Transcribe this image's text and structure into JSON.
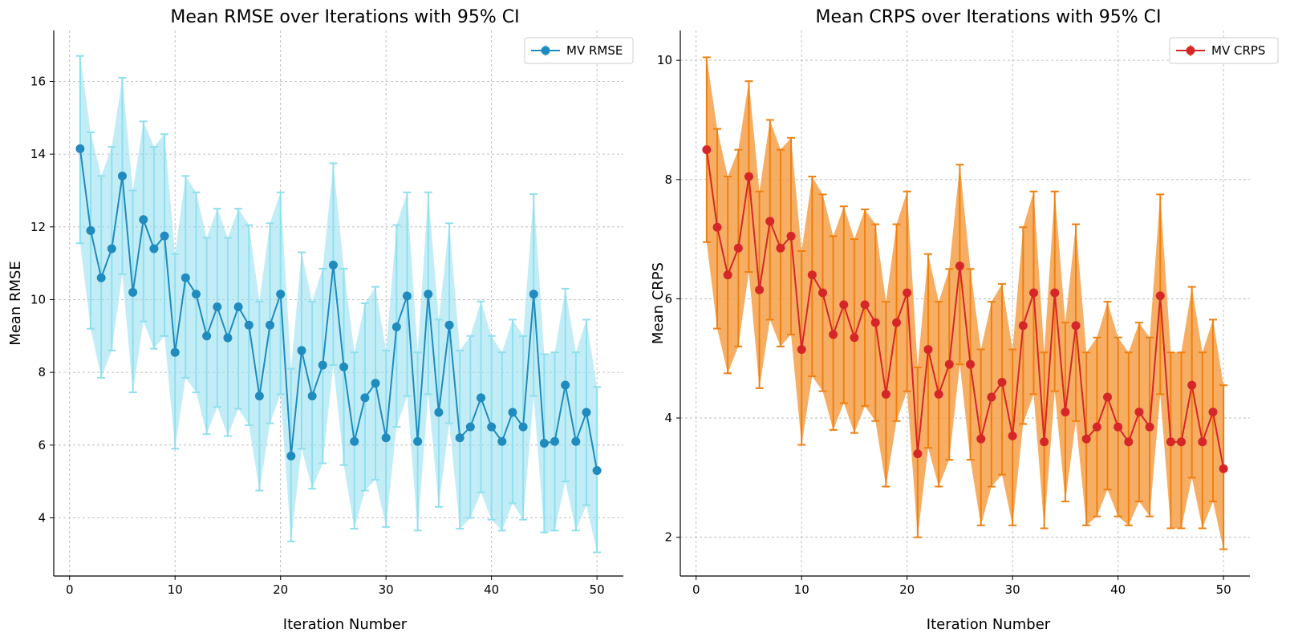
{
  "chart_data": [
    {
      "type": "line",
      "title": "Mean RMSE over Iterations with 95% CI",
      "xlabel": "Iteration Number",
      "ylabel": "Mean RMSE",
      "xlim": [
        -1.5,
        52.5
      ],
      "ylim": [
        2.4,
        17.4
      ],
      "xticks": [
        0,
        10,
        20,
        30,
        40,
        50
      ],
      "yticks": [
        4,
        6,
        8,
        10,
        12,
        14,
        16
      ],
      "grid": true,
      "legend": "top-right",
      "series": [
        {
          "name": "MV RMSE",
          "line_color": "#1f8bbf",
          "ci_color": "#8fdfee",
          "ci_opacity": 0.55,
          "x": [
            1,
            2,
            3,
            4,
            5,
            6,
            7,
            8,
            9,
            10,
            11,
            12,
            13,
            14,
            15,
            16,
            17,
            18,
            19,
            20,
            21,
            22,
            23,
            24,
            25,
            26,
            27,
            28,
            29,
            30,
            31,
            32,
            33,
            34,
            35,
            36,
            37,
            38,
            39,
            40,
            41,
            42,
            43,
            44,
            45,
            46,
            47,
            48,
            49,
            50
          ],
          "y": [
            14.15,
            11.9,
            10.6,
            11.4,
            13.4,
            10.2,
            12.2,
            11.4,
            11.75,
            8.55,
            10.6,
            10.15,
            9.0,
            9.8,
            8.95,
            9.8,
            9.3,
            7.35,
            9.3,
            10.15,
            5.7,
            8.6,
            7.35,
            8.2,
            10.95,
            8.15,
            6.1,
            7.3,
            7.7,
            6.2,
            9.25,
            10.1,
            6.1,
            10.15,
            6.9,
            9.3,
            6.2,
            6.5,
            7.3,
            6.5,
            6.1,
            6.9,
            6.5,
            10.15,
            6.05,
            6.1,
            7.65,
            6.1,
            6.9,
            5.3
          ],
          "ci_lower": [
            11.55,
            9.2,
            7.85,
            8.6,
            10.7,
            7.45,
            9.4,
            8.65,
            9.0,
            5.9,
            7.85,
            7.45,
            6.3,
            7.05,
            6.25,
            7.0,
            6.55,
            4.75,
            6.6,
            7.4,
            3.35,
            5.9,
            4.8,
            5.5,
            8.2,
            5.45,
            3.7,
            4.75,
            5.05,
            3.75,
            6.5,
            7.35,
            3.65,
            7.4,
            4.3,
            6.6,
            3.7,
            4.0,
            4.7,
            3.95,
            3.65,
            4.4,
            3.95,
            7.35,
            3.6,
            3.65,
            5.0,
            3.65,
            4.35,
            3.05
          ],
          "ci_upper": [
            16.7,
            14.6,
            13.4,
            14.2,
            16.1,
            13.0,
            14.9,
            14.2,
            14.55,
            11.25,
            13.4,
            12.95,
            11.7,
            12.5,
            11.7,
            12.5,
            12.05,
            9.95,
            12.1,
            12.95,
            8.1,
            11.3,
            9.95,
            10.85,
            13.75,
            10.85,
            8.55,
            9.9,
            10.35,
            8.6,
            12.05,
            12.95,
            8.55,
            12.95,
            9.45,
            12.1,
            8.6,
            9.0,
            9.95,
            9.0,
            8.55,
            9.45,
            9.0,
            12.9,
            8.5,
            8.55,
            10.3,
            8.55,
            9.45,
            7.6
          ]
        }
      ]
    },
    {
      "type": "line",
      "title": "Mean CRPS over Iterations with 95% CI",
      "xlabel": "Iteration Number",
      "ylabel": "Mean CRPS",
      "xlim": [
        -1.5,
        52.5
      ],
      "ylim": [
        1.35,
        10.5
      ],
      "xticks": [
        0,
        10,
        20,
        30,
        40,
        50
      ],
      "yticks": [
        2,
        4,
        6,
        8,
        10
      ],
      "grid": true,
      "legend": "top-right",
      "series": [
        {
          "name": "MV CRPS",
          "line_color": "#d62728",
          "ci_color": "#f5a04a",
          "ci_bar_color": "#f07f10",
          "ci_opacity": 0.85,
          "x": [
            1,
            2,
            3,
            4,
            5,
            6,
            7,
            8,
            9,
            10,
            11,
            12,
            13,
            14,
            15,
            16,
            17,
            18,
            19,
            20,
            21,
            22,
            23,
            24,
            25,
            26,
            27,
            28,
            29,
            30,
            31,
            32,
            33,
            34,
            35,
            36,
            37,
            38,
            39,
            40,
            41,
            42,
            43,
            44,
            45,
            46,
            47,
            48,
            49,
            50
          ],
          "y": [
            8.5,
            7.2,
            6.4,
            6.85,
            8.05,
            6.15,
            7.3,
            6.85,
            7.05,
            5.15,
            6.4,
            6.1,
            5.4,
            5.9,
            5.35,
            5.9,
            5.6,
            4.4,
            5.6,
            6.1,
            3.4,
            5.15,
            4.4,
            4.9,
            6.55,
            4.9,
            3.65,
            4.35,
            4.6,
            3.7,
            5.55,
            6.1,
            3.6,
            6.1,
            4.1,
            5.55,
            3.65,
            3.85,
            4.35,
            3.85,
            3.6,
            4.1,
            3.85,
            6.05,
            3.6,
            3.6,
            4.55,
            3.6,
            4.1,
            3.15
          ],
          "ci_lower": [
            6.95,
            5.5,
            4.75,
            5.2,
            6.45,
            4.5,
            5.65,
            5.2,
            5.4,
            3.55,
            4.7,
            4.45,
            3.8,
            4.25,
            3.75,
            4.2,
            3.95,
            2.85,
            3.95,
            4.45,
            2.0,
            3.5,
            2.85,
            3.3,
            4.9,
            3.3,
            2.2,
            2.85,
            3.05,
            2.2,
            3.9,
            4.4,
            2.15,
            4.45,
            2.6,
            3.95,
            2.2,
            2.35,
            2.8,
            2.35,
            2.2,
            2.6,
            2.35,
            4.4,
            2.15,
            2.15,
            3.0,
            2.15,
            2.6,
            1.8
          ],
          "ci_upper": [
            10.05,
            8.85,
            8.05,
            8.5,
            9.65,
            7.8,
            9.0,
            8.5,
            8.7,
            6.8,
            8.05,
            7.75,
            7.05,
            7.55,
            7.0,
            7.5,
            7.25,
            5.95,
            7.25,
            7.8,
            4.85,
            6.75,
            5.95,
            6.5,
            8.25,
            6.5,
            5.15,
            5.95,
            6.25,
            5.15,
            7.2,
            7.8,
            5.1,
            7.8,
            5.6,
            7.25,
            5.1,
            5.35,
            5.95,
            5.35,
            5.1,
            5.6,
            5.35,
            7.75,
            5.1,
            5.1,
            6.2,
            5.1,
            5.65,
            4.55
          ]
        }
      ]
    }
  ]
}
